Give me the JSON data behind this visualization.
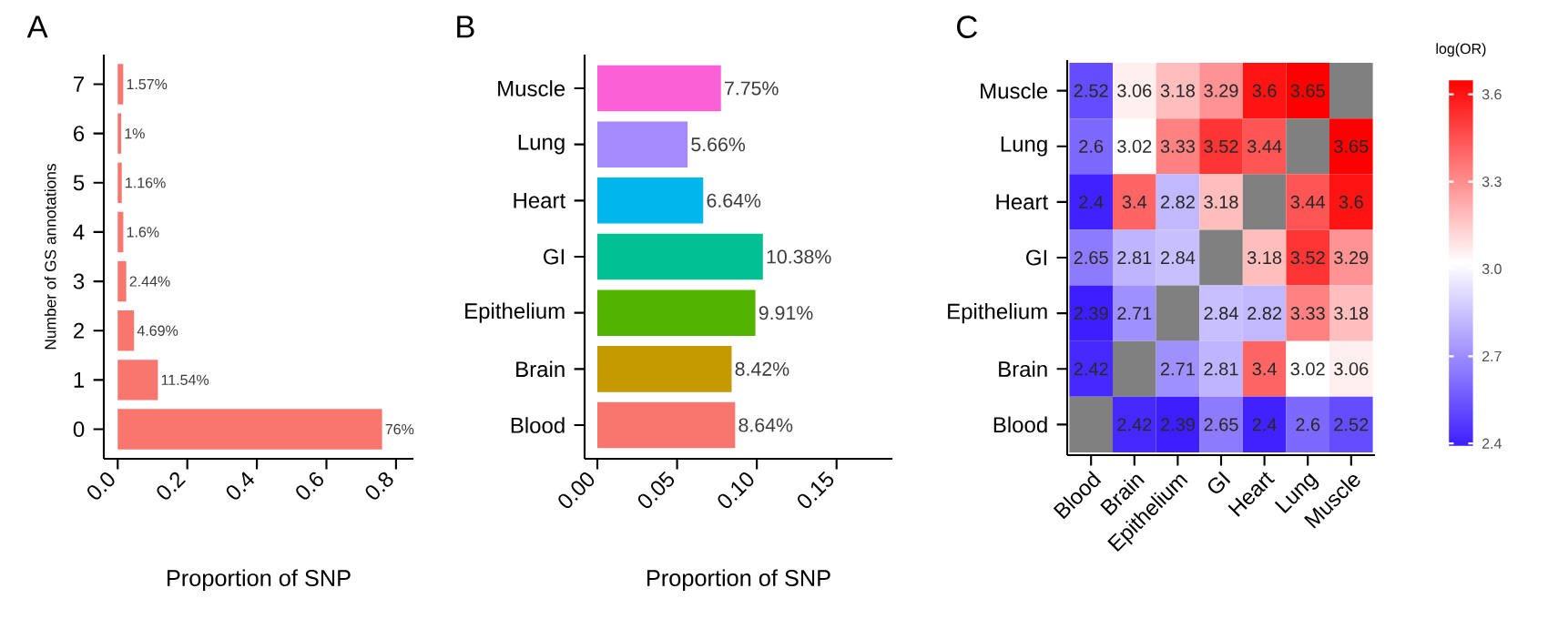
{
  "chart_data": [
    {
      "type": "bar",
      "title": "A",
      "orientation": "horizontal",
      "xlabel": "Proportion of SNP",
      "ylabel": "Number of GS annotations",
      "categories": [
        "7",
        "6",
        "5",
        "4",
        "3",
        "2",
        "1",
        "0"
      ],
      "values": [
        0.0157,
        0.01,
        0.0116,
        0.016,
        0.0244,
        0.0469,
        0.1154,
        0.76
      ],
      "value_labels": [
        "1.57%",
        "1%",
        "1.16%",
        "1.6%",
        "2.44%",
        "4.69%",
        "11.54%",
        "76%"
      ],
      "color": "#f8766d",
      "xlim": [
        -0.04,
        0.85
      ],
      "xticks": [
        {
          "value": 0,
          "label": "0.0"
        },
        {
          "value": 0.2,
          "label": "0.2"
        },
        {
          "value": 0.4,
          "label": "0.4"
        },
        {
          "value": 0.6,
          "label": "0.6"
        },
        {
          "value": 0.8,
          "label": "0.8"
        }
      ]
    },
    {
      "type": "bar",
      "title": "B",
      "orientation": "horizontal",
      "xlabel": "Proportion of SNP",
      "categories": [
        "Muscle",
        "Lung",
        "Heart",
        "GI",
        "Epithelium",
        "Brain",
        "Blood"
      ],
      "values": [
        0.0775,
        0.0566,
        0.0664,
        0.1038,
        0.0991,
        0.0842,
        0.0864
      ],
      "value_labels": [
        "7.75%",
        "5.66%",
        "6.64%",
        "10.38%",
        "9.91%",
        "8.42%",
        "8.64%"
      ],
      "colors": [
        "#fb61d7",
        "#a58aff",
        "#00b6eb",
        "#00c094",
        "#53b400",
        "#c49a00",
        "#f8766d"
      ],
      "xlim": [
        -0.008,
        0.185
      ],
      "xticks": [
        {
          "value": 0,
          "label": "0.00"
        },
        {
          "value": 0.05,
          "label": "0.05"
        },
        {
          "value": 0.1,
          "label": "0.10"
        },
        {
          "value": 0.15,
          "label": "0.15"
        }
      ]
    },
    {
      "type": "heatmap",
      "title": "C",
      "clabel": "log(OR)",
      "data_labels": true,
      "categories": [
        "Blood",
        "Brain",
        "Epithelium",
        "GI",
        "Heart",
        "Lung",
        "Muscle"
      ],
      "y_categories": [
        "Muscle",
        "Lung",
        "Heart",
        "GI",
        "Epithelium",
        "Brain",
        "Blood"
      ],
      "cells": [
        [
          2.52,
          3.06,
          3.18,
          3.29,
          3.6,
          3.65,
          null
        ],
        [
          2.6,
          3.02,
          3.33,
          3.52,
          3.44,
          null,
          3.65
        ],
        [
          2.4,
          3.4,
          2.82,
          3.18,
          null,
          3.44,
          3.6
        ],
        [
          2.65,
          2.81,
          2.84,
          null,
          3.18,
          3.52,
          3.29
        ],
        [
          2.39,
          2.71,
          null,
          2.84,
          2.82,
          3.33,
          3.18
        ],
        [
          2.42,
          null,
          2.71,
          2.81,
          3.4,
          3.02,
          3.06
        ],
        [
          null,
          2.42,
          2.39,
          2.65,
          2.4,
          2.6,
          2.52
        ]
      ],
      "clim": [
        2.39,
        3.65
      ],
      "cticks": [
        {
          "value": 2.4,
          "label": "2.4"
        },
        {
          "value": 2.7,
          "label": "2.7"
        },
        {
          "value": 3.0,
          "label": "3.0"
        },
        {
          "value": 3.3,
          "label": "3.3"
        },
        {
          "value": 3.6,
          "label": "3.6"
        }
      ]
    }
  ]
}
